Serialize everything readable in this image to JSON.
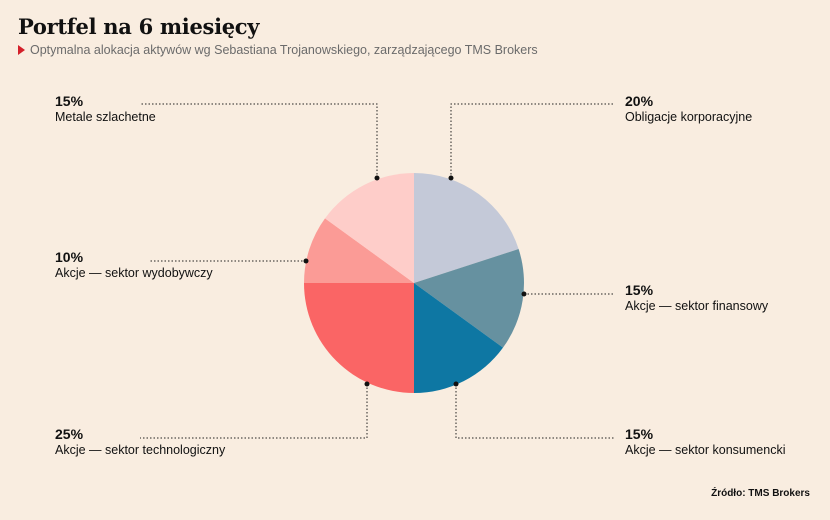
{
  "title": "Portfel na 6 miesięcy",
  "subtitle": "Optymalna alokacja aktywów wg Sebastiana Trojanowskiego, zarządzającego TMS Brokers",
  "source": "Źródło: TMS Brokers",
  "chart_data": {
    "type": "pie",
    "title": "Portfel na 6 miesięcy",
    "slices": [
      {
        "label": "Obligacje korporacyjne",
        "pct_label": "20%",
        "value": 20,
        "color": "#c4c9d8"
      },
      {
        "label": "Akcje — sektor finansowy",
        "pct_label": "15%",
        "value": 15,
        "color": "#6691a0"
      },
      {
        "label": "Akcje — sektor konsumencki",
        "pct_label": "15%",
        "value": 15,
        "color": "#0e77a3"
      },
      {
        "label": "Akcje — sektor technologiczny",
        "pct_label": "25%",
        "value": 25,
        "color": "#fa6565"
      },
      {
        "label": "Akcje — sektor wydobywczy",
        "pct_label": "10%",
        "value": 10,
        "color": "#fb9b96"
      },
      {
        "label": "Metale szlachetne",
        "pct_label": "15%",
        "value": 15,
        "color": "#fecdc9"
      }
    ]
  }
}
